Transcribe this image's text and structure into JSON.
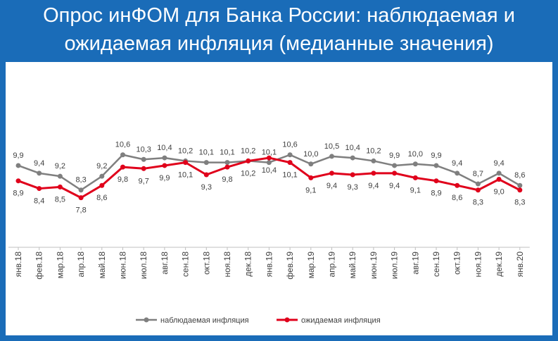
{
  "header": {
    "title_line1": "Опрос инФОМ для Банка России: наблюдаемая и",
    "title_line2": "ожидаемая инфляция (медианные значения)"
  },
  "chart_data": {
    "type": "line",
    "categories": [
      "янв.18",
      "фев.18",
      "мар.18",
      "апр.18",
      "май.18",
      "июн.18",
      "июл.18",
      "авг.18",
      "сен.18",
      "окт.18",
      "ноя.18",
      "дек.18",
      "янв.19",
      "фев.19",
      "мар.19",
      "апр.19",
      "май.19",
      "июн.19",
      "июл.19",
      "авг.19",
      "сен.19",
      "окт.19",
      "ноя.19",
      "дек.19",
      "янв.20"
    ],
    "series": [
      {
        "name": "наблюдаемая инфляция",
        "color": "#7f7f7f",
        "values": [
          9.9,
          9.4,
          9.2,
          8.3,
          9.2,
          10.6,
          10.3,
          10.4,
          10.2,
          10.1,
          10.1,
          10.2,
          10.1,
          10.6,
          10.0,
          10.5,
          10.4,
          10.2,
          9.9,
          10.0,
          9.9,
          9.4,
          8.7,
          9.4,
          8.6
        ],
        "labels": [
          "9,9",
          "9,4",
          "9,2",
          "8,3",
          "9,2",
          "10,6",
          "10,3",
          "10,4",
          "10,2",
          "10,1",
          "10,1",
          "10,2",
          "10,1",
          "10,6",
          "10,0",
          "10,5",
          "10,4",
          "10,2",
          "9,9",
          "10,0",
          "9,9",
          "9,4",
          "8,7",
          "9,4",
          "8,6"
        ]
      },
      {
        "name": "ожидаемая инфляция",
        "color": "#e0001b",
        "values": [
          8.9,
          8.4,
          8.5,
          7.8,
          8.6,
          9.8,
          9.7,
          9.9,
          10.1,
          9.3,
          9.8,
          10.2,
          10.4,
          10.1,
          9.1,
          9.4,
          9.3,
          9.4,
          9.4,
          9.1,
          8.9,
          8.6,
          8.3,
          9.0,
          8.3
        ],
        "labels": [
          "8,9",
          "8,4",
          "8,5",
          "7,8",
          "8,6",
          "9,8",
          "9,7",
          "9,9",
          "10,1",
          "9,3",
          "9,8",
          "10,2",
          "10,4",
          "10,1",
          "9,1",
          "9,4",
          "9,3",
          "9,4",
          "9,4",
          "9,1",
          "8,9",
          "8,6",
          "8,3",
          "9,0",
          "8,3"
        ]
      }
    ],
    "ylim": [
      7.0,
      11.6
    ],
    "grid": false,
    "legend_position": "bottom"
  }
}
